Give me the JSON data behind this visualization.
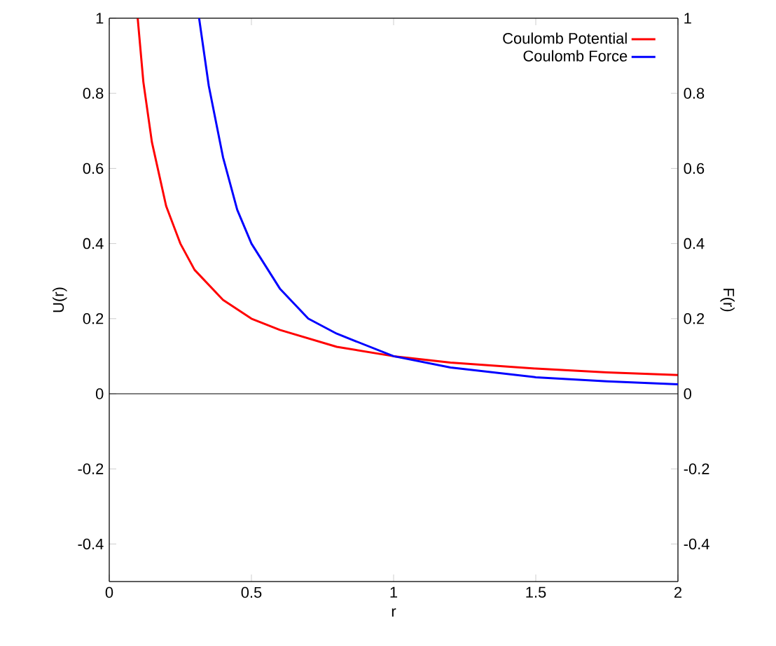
{
  "chart_data": {
    "type": "line",
    "xlabel": "r",
    "ylabel": "U(r)",
    "y2label": "F(r)",
    "xlim": [
      0,
      2
    ],
    "xticks": [
      0,
      0.5,
      1,
      1.5,
      2
    ],
    "ylim": [
      -0.5,
      1
    ],
    "yticks": [
      -0.4,
      -0.2,
      0,
      0.2,
      0.4,
      0.6,
      0.8,
      1
    ],
    "y2lim": [
      -0.5,
      1
    ],
    "y2ticks": [
      -0.4,
      -0.2,
      0,
      0.2,
      0.4,
      0.6,
      0.8,
      1
    ],
    "legend": "top right",
    "marker": "none",
    "line_style": "solid",
    "ref_lines": [
      {
        "axis": "y",
        "value": 0,
        "color": "#000000"
      }
    ],
    "series": [
      {
        "name": "Coulomb Potential",
        "color": "#ff0000",
        "x": [
          0.1,
          0.12,
          0.15,
          0.2,
          0.25,
          0.3,
          0.4,
          0.5,
          0.6,
          0.8,
          1,
          1.2,
          1.5,
          1.75,
          2
        ],
        "values": [
          1,
          0.83,
          0.67,
          0.5,
          0.4,
          0.33,
          0.25,
          0.2,
          0.17,
          0.125,
          0.1,
          0.083,
          0.067,
          0.057,
          0.05
        ]
      },
      {
        "name": "Coulomb Force",
        "color": "#0000ff",
        "axis": "y2",
        "x": [
          0.316,
          0.35,
          0.4,
          0.45,
          0.5,
          0.6,
          0.7,
          0.8,
          1,
          1.2,
          1.5,
          1.75,
          2
        ],
        "values": [
          1,
          0.82,
          0.63,
          0.49,
          0.4,
          0.28,
          0.2,
          0.16,
          0.1,
          0.07,
          0.044,
          0.033,
          0.025
        ]
      }
    ]
  }
}
